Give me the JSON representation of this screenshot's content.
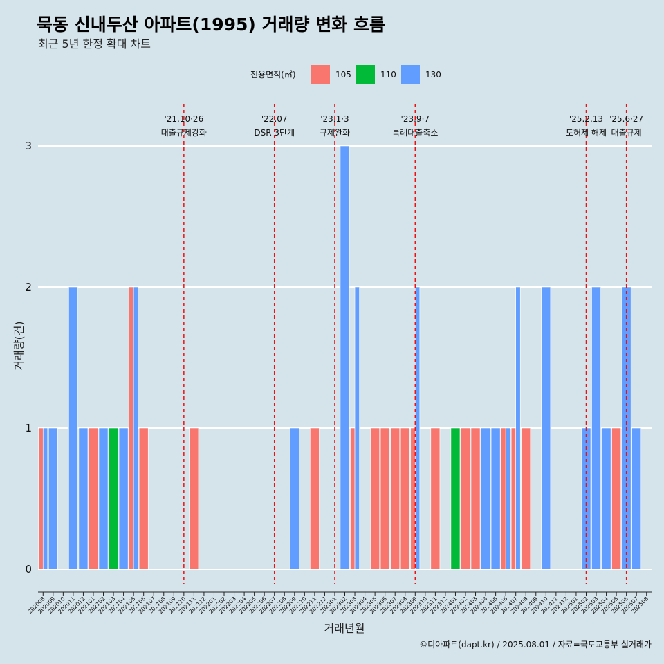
{
  "header": {
    "title": "묵동 신내두산 아파트(1995) 거래량 변화 흐름",
    "subtitle": "최근 5년 한정 확대 차트"
  },
  "legend": {
    "title": "전용면적(㎡)",
    "position": "top",
    "items": [
      {
        "name": "105",
        "color": "#f8766d"
      },
      {
        "name": "110",
        "color": "#00ba38"
      },
      {
        "name": "130",
        "color": "#619cff"
      }
    ]
  },
  "caption": "©디아파트(dapt.kr) / 2025.08.01 / 자료=국토교통부 실거래가",
  "chart_data": {
    "type": "bar",
    "xlabel": "거래년월",
    "ylabel": "거래량(건)",
    "ylim": [
      0,
      3
    ],
    "yticks": [
      0,
      1,
      2,
      3
    ],
    "grid": true,
    "categories": [
      "202008",
      "202009",
      "202010",
      "202011",
      "202012",
      "202101",
      "202102",
      "202103",
      "202104",
      "202105",
      "202106",
      "202107",
      "202108",
      "202109",
      "202110",
      "202111",
      "202112",
      "202201",
      "202202",
      "202203",
      "202204",
      "202205",
      "202206",
      "202207",
      "202208",
      "202209",
      "202210",
      "202211",
      "202212",
      "202301",
      "202302",
      "202303",
      "202304",
      "202305",
      "202306",
      "202307",
      "202308",
      "202309",
      "202310",
      "202311",
      "202312",
      "202401",
      "202402",
      "202403",
      "202404",
      "202405",
      "202406",
      "202407",
      "202408",
      "202409",
      "202410",
      "202411",
      "202412",
      "202501",
      "202502",
      "202503",
      "202504",
      "202505",
      "202506",
      "202507",
      "202508"
    ],
    "series": [
      {
        "name": "105",
        "color": "#f8766d",
        "values": [
          1,
          0,
          0,
          0,
          0,
          1,
          0,
          0,
          0,
          2,
          1,
          0,
          0,
          0,
          0,
          1,
          0,
          0,
          0,
          0,
          0,
          0,
          0,
          0,
          0,
          0,
          0,
          1,
          0,
          0,
          0,
          1,
          0,
          1,
          1,
          1,
          1,
          1,
          0,
          1,
          0,
          0,
          1,
          1,
          0,
          0,
          1,
          1,
          1,
          0,
          0,
          0,
          0,
          0,
          0,
          0,
          0,
          1,
          0,
          0,
          0
        ]
      },
      {
        "name": "110",
        "color": "#00ba38",
        "values": [
          0,
          0,
          0,
          0,
          0,
          0,
          0,
          1,
          0,
          0,
          0,
          0,
          0,
          0,
          0,
          0,
          0,
          0,
          0,
          0,
          0,
          0,
          0,
          0,
          0,
          0,
          0,
          0,
          0,
          0,
          0,
          0,
          0,
          0,
          0,
          0,
          0,
          0,
          0,
          0,
          0,
          1,
          0,
          0,
          0,
          0,
          0,
          0,
          0,
          0,
          0,
          0,
          0,
          0,
          0,
          0,
          0,
          0,
          0,
          0,
          0
        ]
      },
      {
        "name": "130",
        "color": "#619cff",
        "values": [
          1,
          1,
          0,
          2,
          1,
          0,
          1,
          0,
          1,
          2,
          0,
          0,
          0,
          0,
          0,
          0,
          0,
          0,
          0,
          0,
          0,
          0,
          0,
          0,
          0,
          1,
          0,
          0,
          0,
          0,
          3,
          2,
          0,
          0,
          0,
          0,
          0,
          2,
          0,
          0,
          0,
          0,
          0,
          0,
          1,
          1,
          1,
          2,
          0,
          0,
          2,
          0,
          0,
          0,
          1,
          2,
          1,
          0,
          2,
          1,
          0
        ]
      }
    ],
    "annotations": [
      {
        "date": "202110",
        "line1": "'21.10·26",
        "line2": "대출규제강화"
      },
      {
        "date": "202207",
        "line1": "'22.07",
        "line2": "DSR 3단계"
      },
      {
        "date": "202301",
        "line1": "'23.1·3",
        "line2": "규제완화"
      },
      {
        "date": "202309",
        "line1": "'23.9·7",
        "line2": "특례대출축소"
      },
      {
        "date": "202502",
        "line1": "'25.2.13",
        "line2": "토허제 해제"
      },
      {
        "date": "202506",
        "line1": "'25.6·27",
        "line2": "대출규제"
      }
    ]
  }
}
